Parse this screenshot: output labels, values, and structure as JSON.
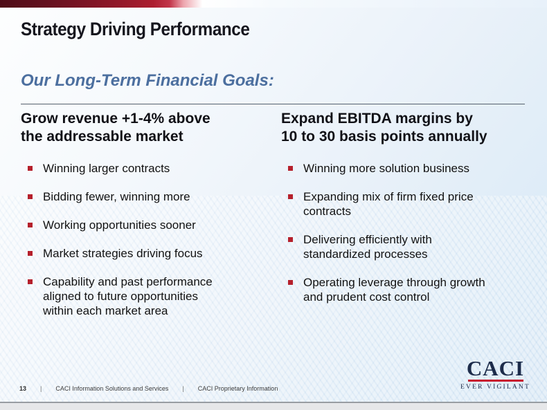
{
  "slide": {
    "title": "Strategy Driving Performance",
    "subtitle": "Our Long-Term Financial Goals:",
    "columns": [
      {
        "heading": "Grow revenue +1-4% above\nthe addressable market",
        "bullets": [
          "Winning larger contracts",
          "Bidding fewer, winning more",
          "Working opportunities sooner",
          "Market strategies driving focus",
          "Capability and past performance\naligned to future opportunities\nwithin each market area"
        ]
      },
      {
        "heading": "Expand EBITDA margins by\n10 to 30 basis points annually",
        "bullets": [
          "Winning more solution business",
          "Expanding mix of firm fixed price\ncontracts",
          "Delivering efficiently with\nstandardized processes",
          "Operating leverage through growth\nand prudent cost control"
        ]
      }
    ],
    "footer": {
      "page_number": "13",
      "separator": "|",
      "items": [
        "CACI Information Solutions and Services",
        "CACI Proprietary Information"
      ]
    },
    "logo": {
      "name": "CACI",
      "tagline": "EVER VIGILANT"
    },
    "colors": {
      "bullet_red": "#b5202c",
      "heading_blue": "#4c6f9f",
      "logo_navy": "#1c2b4a",
      "logo_red": "#c8102e",
      "bar_dark_red": "#4e0b16",
      "bar_bright_red": "#ad1d2f"
    }
  }
}
